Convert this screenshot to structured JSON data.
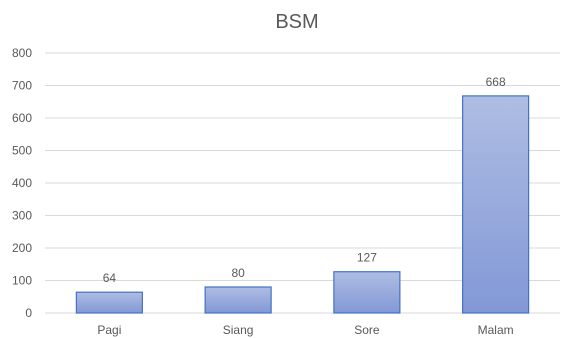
{
  "chart_data": {
    "type": "bar",
    "title": "BSM",
    "categories": [
      "Pagi",
      "Siang",
      "Sore",
      "Malam"
    ],
    "values": [
      64,
      80,
      127,
      668
    ],
    "data_labels": [
      "64",
      "80",
      "127",
      "668"
    ],
    "ylim": [
      0,
      800
    ],
    "yticks": [
      0,
      100,
      200,
      300,
      400,
      500,
      600,
      700,
      800
    ],
    "xlabel": "",
    "ylabel": "",
    "grid": true,
    "legend": "none",
    "colors": {
      "bar_top": "#afbde3",
      "bar_bottom": "#8298d6",
      "bar_stroke": "#4472c4",
      "gridline": "#d9d9d9",
      "text": "#595959"
    }
  }
}
